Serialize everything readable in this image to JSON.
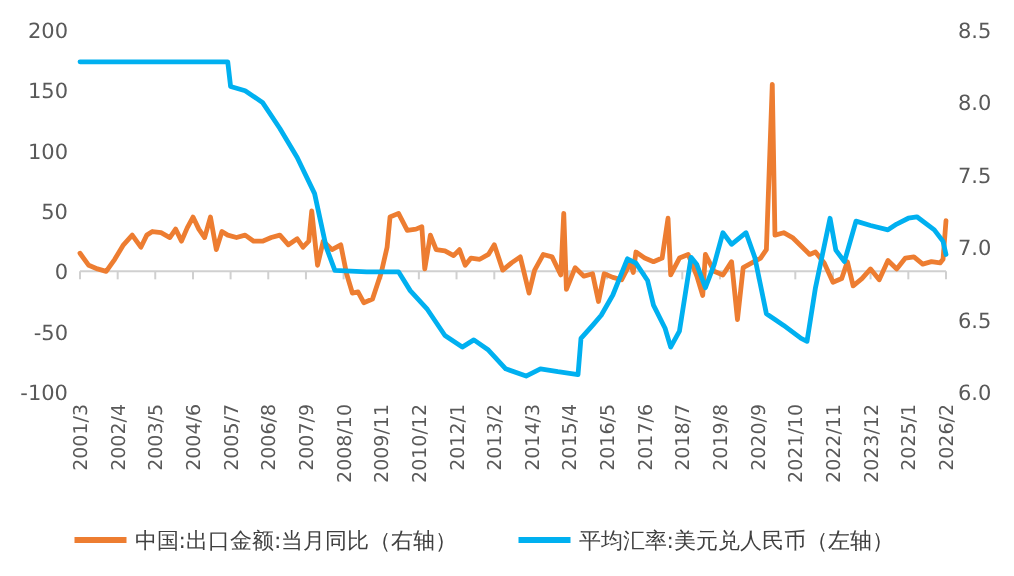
{
  "chart_data": {
    "type": "line",
    "legend": "bottom",
    "xlim": [
      "2001-03",
      "2026-02"
    ],
    "xticks": [
      {
        "value": "2001-03",
        "label": "2001/3"
      },
      {
        "value": "2002-04",
        "label": "2002/4"
      },
      {
        "value": "2003-05",
        "label": "2003/5"
      },
      {
        "value": "2004-06",
        "label": "2004/6"
      },
      {
        "value": "2005-07",
        "label": "2005/7"
      },
      {
        "value": "2006-08",
        "label": "2006/8"
      },
      {
        "value": "2007-09",
        "label": "2007/9"
      },
      {
        "value": "2008-10",
        "label": "2008/10"
      },
      {
        "value": "2009-11",
        "label": "2009/11"
      },
      {
        "value": "2010-12",
        "label": "2010/12"
      },
      {
        "value": "2012-01",
        "label": "2012/1"
      },
      {
        "value": "2013-02",
        "label": "2013/2"
      },
      {
        "value": "2014-03",
        "label": "2014/3"
      },
      {
        "value": "2015-04",
        "label": "2015/4"
      },
      {
        "value": "2016-05",
        "label": "2016/5"
      },
      {
        "value": "2017-06",
        "label": "2017/6"
      },
      {
        "value": "2018-07",
        "label": "2018/7"
      },
      {
        "value": "2019-08",
        "label": "2019/8"
      },
      {
        "value": "2020-09",
        "label": "2020/9"
      },
      {
        "value": "2021-10",
        "label": "2021/10"
      },
      {
        "value": "2022-11",
        "label": "2022/11"
      },
      {
        "value": "2023-12",
        "label": "2023/12"
      },
      {
        "value": "2025-01",
        "label": "2025/1"
      },
      {
        "value": "2026-02",
        "label": "2026/2"
      }
    ],
    "ylim": [
      -100,
      200
    ],
    "yticks": [
      -100,
      -50,
      0,
      50,
      100,
      150,
      200
    ],
    "y2lim": [
      6,
      8.5
    ],
    "y2ticks": [
      {
        "value": 6,
        "label": "6.0"
      },
      {
        "value": 6.5,
        "label": "6.5"
      },
      {
        "value": 7,
        "label": "7.0"
      },
      {
        "value": 7.5,
        "label": "7.5"
      },
      {
        "value": 8,
        "label": "8.0"
      },
      {
        "value": 8.5,
        "label": "8.5"
      }
    ],
    "series": [
      {
        "name": "中国:出口金额:当月同比（右轴）",
        "color": "#ed7d31",
        "axis": "y",
        "x": [
          "2001-03",
          "2001-06",
          "2001-09",
          "2001-12",
          "2002-03",
          "2002-06",
          "2002-09",
          "2002-12",
          "2003-02",
          "2003-04",
          "2003-07",
          "2003-10",
          "2003-12",
          "2004-02",
          "2004-04",
          "2004-06",
          "2004-08",
          "2004-10",
          "2004-12",
          "2005-02",
          "2005-04",
          "2005-06",
          "2005-09",
          "2005-12",
          "2006-03",
          "2006-06",
          "2006-09",
          "2006-12",
          "2007-03",
          "2007-06",
          "2007-08",
          "2007-10",
          "2007-11",
          "2008-01",
          "2008-03",
          "2008-06",
          "2008-09",
          "2008-11",
          "2009-01",
          "2009-03",
          "2009-05",
          "2009-08",
          "2009-11",
          "2010-01",
          "2010-02",
          "2010-05",
          "2010-08",
          "2010-11",
          "2011-01",
          "2011-02",
          "2011-04",
          "2011-06",
          "2011-09",
          "2011-12",
          "2012-02",
          "2012-04",
          "2012-06",
          "2012-09",
          "2012-12",
          "2013-02",
          "2013-05",
          "2013-08",
          "2013-11",
          "2014-02",
          "2014-04",
          "2014-07",
          "2014-10",
          "2015-01",
          "2015-02",
          "2015-03",
          "2015-06",
          "2015-09",
          "2015-12",
          "2016-02",
          "2016-04",
          "2016-07",
          "2016-10",
          "2017-01",
          "2017-02",
          "2017-03",
          "2017-06",
          "2017-09",
          "2017-12",
          "2018-02",
          "2018-03",
          "2018-06",
          "2018-09",
          "2018-12",
          "2019-02",
          "2019-03",
          "2019-06",
          "2019-09",
          "2019-12",
          "2020-02",
          "2020-04",
          "2020-07",
          "2020-10",
          "2020-12",
          "2021-02",
          "2021-03",
          "2021-06",
          "2021-09",
          "2021-12",
          "2022-03",
          "2022-05",
          "2022-08",
          "2022-11",
          "2023-02",
          "2023-04",
          "2023-06",
          "2023-09",
          "2023-12",
          "2024-03",
          "2024-06",
          "2024-09",
          "2024-12",
          "2025-03",
          "2025-06",
          "2025-09",
          "2025-12",
          "2026-01",
          "2026-02"
        ],
        "values": [
          15,
          5,
          2,
          0,
          10,
          22,
          30,
          20,
          30,
          33,
          32,
          28,
          35,
          25,
          36,
          45,
          35,
          28,
          45,
          18,
          33,
          30,
          28,
          30,
          25,
          25,
          28,
          30,
          22,
          27,
          20,
          25,
          50,
          5,
          25,
          18,
          22,
          -2,
          -18,
          -17,
          -26,
          -23,
          -1,
          20,
          45,
          48,
          34,
          35,
          37,
          2,
          30,
          18,
          17,
          13,
          18,
          5,
          11,
          10,
          14,
          22,
          1,
          7,
          12,
          -18,
          1,
          14,
          12,
          -3,
          48,
          -15,
          3,
          -4,
          -2,
          -25,
          -2,
          -5,
          -7,
          7,
          -1,
          16,
          11,
          8,
          11,
          44,
          -3,
          11,
          14,
          -4,
          -20,
          14,
          0,
          -3,
          8,
          -40,
          3,
          7,
          11,
          18,
          155,
          30,
          32,
          28,
          21,
          14,
          16,
          7,
          -9,
          -6,
          8,
          -12,
          -6,
          2,
          -7,
          9,
          2,
          11,
          12,
          6,
          8,
          7,
          10,
          42
        ]
      },
      {
        "name": "平均汇率:美元兑人民币（左轴）",
        "color": "#00b0f0",
        "axis": "y2",
        "x": [
          "2001-03",
          "2005-06",
          "2005-07",
          "2005-12",
          "2006-06",
          "2006-12",
          "2007-06",
          "2007-12",
          "2008-04",
          "2008-07",
          "2009-06",
          "2010-05",
          "2010-09",
          "2011-03",
          "2011-09",
          "2012-03",
          "2012-07",
          "2012-12",
          "2013-06",
          "2014-01",
          "2014-06",
          "2014-12",
          "2015-07",
          "2015-08",
          "2015-12",
          "2016-03",
          "2016-07",
          "2016-12",
          "2017-03",
          "2017-07",
          "2017-09",
          "2018-01",
          "2018-03",
          "2018-06",
          "2018-10",
          "2018-12",
          "2019-03",
          "2019-06",
          "2019-09",
          "2019-12",
          "2020-05",
          "2020-08",
          "2020-12",
          "2021-03",
          "2021-06",
          "2021-12",
          "2022-02",
          "2022-05",
          "2022-10",
          "2022-12",
          "2023-03",
          "2023-07",
          "2023-12",
          "2024-06",
          "2024-09",
          "2025-01",
          "2025-04",
          "2025-10",
          "2026-01",
          "2026-02"
        ],
        "values": [
          8.28,
          8.28,
          8.11,
          8.08,
          8.0,
          7.82,
          7.62,
          7.37,
          7.0,
          6.84,
          6.83,
          6.83,
          6.7,
          6.57,
          6.39,
          6.31,
          6.36,
          6.29,
          6.16,
          6.11,
          6.16,
          6.14,
          6.12,
          6.37,
          6.46,
          6.53,
          6.67,
          6.92,
          6.89,
          6.77,
          6.6,
          6.44,
          6.31,
          6.42,
          6.93,
          6.88,
          6.72,
          6.88,
          7.1,
          7.02,
          7.1,
          6.93,
          6.54,
          6.5,
          6.46,
          6.37,
          6.35,
          6.72,
          7.2,
          6.98,
          6.9,
          7.18,
          7.15,
          7.12,
          7.16,
          7.2,
          7.21,
          7.12,
          7.04,
          6.95
        ]
      }
    ]
  }
}
